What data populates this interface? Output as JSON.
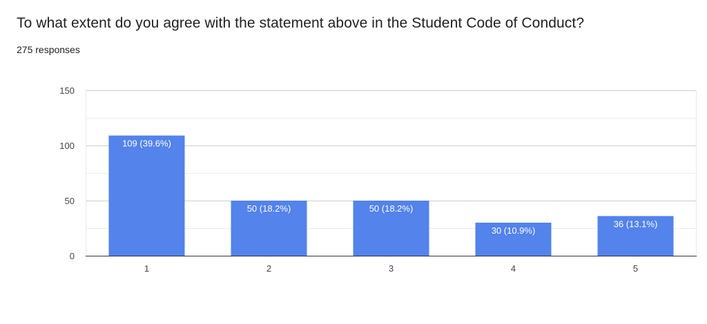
{
  "header": {
    "question": "To what extent do you agree with the statement above in the Student Code of Conduct?",
    "responses": "275 responses"
  },
  "colors": {
    "bar": "#5383EB",
    "grid": "#EBEBEB",
    "axis": "#333333"
  },
  "chart_data": {
    "type": "bar",
    "title": "",
    "xlabel": "",
    "ylabel": "",
    "categories": [
      "1",
      "2",
      "3",
      "4",
      "5"
    ],
    "values": [
      109,
      50,
      50,
      30,
      36
    ],
    "data_labels": [
      "109 (39.6%)",
      "50 (18.2%)",
      "50 (18.2%)",
      "30 (10.9%)",
      "36 (13.1%)"
    ],
    "ylim": [
      0,
      150
    ],
    "yticks": [
      0,
      50,
      100,
      150
    ],
    "minor_grid": true
  }
}
